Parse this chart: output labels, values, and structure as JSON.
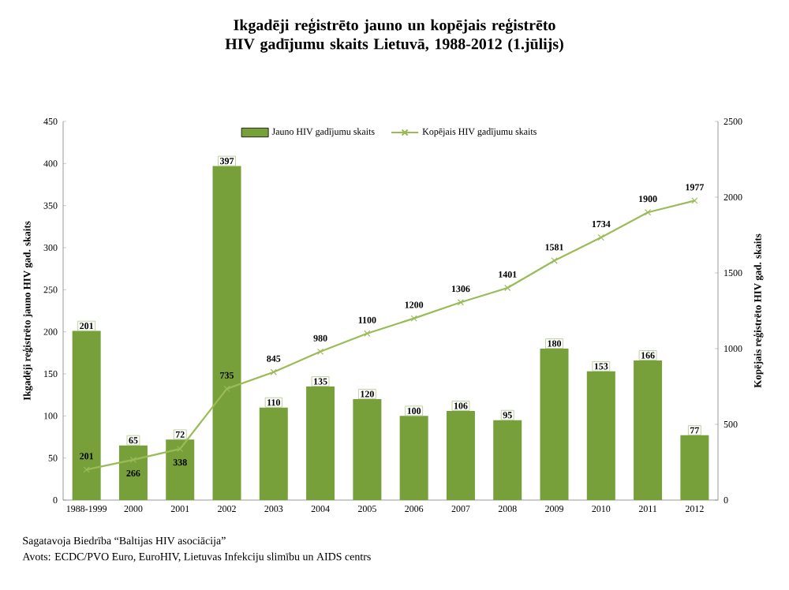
{
  "chart_data": {
    "type": "bar",
    "title": "Ikgadēji reģistrēto jauno un kopējais reģistrēto HIV gadījumu skaits Lietuvā, 1988-2012 (1.jūlijs)",
    "ylabel": "Ikgadēji reģistrēto jauno HIV gad. skaits",
    "y2label": "Kopējais reģistrēto HIV gad. skaits",
    "categories": [
      "1988-1999",
      "2000",
      "2001",
      "2002",
      "2003",
      "2004",
      "2005",
      "2006",
      "2007",
      "2008",
      "2009",
      "2010",
      "2011",
      "2012"
    ],
    "series": [
      {
        "name": "Jauno HIV gadījumu skaits",
        "color": "#77a03a",
        "values": [
          201,
          65,
          72,
          397,
          110,
          135,
          120,
          100,
          106,
          95,
          180,
          153,
          166,
          77
        ]
      },
      {
        "name": "Kopējais HIV gadījumu skaits",
        "type": "line",
        "axis": "y2",
        "color": "#9bbb59",
        "marker": "cross",
        "values": [
          201,
          266,
          338,
          735,
          845,
          980,
          1100,
          1200,
          1306,
          1401,
          1581,
          1734,
          1900,
          1977
        ]
      }
    ],
    "ylim": [
      0,
      450
    ],
    "yticks": [
      0,
      50,
      100,
      150,
      200,
      250,
      300,
      350,
      400,
      450
    ],
    "y2lim": [
      0,
      2500
    ],
    "y2ticks": [
      0,
      500,
      1000,
      1500,
      2000,
      2500
    ],
    "data_labels": true,
    "legend": "top",
    "annotations": [
      "Sagatavoja Biedrība “Baltijas HIV asociācija”",
      "Avots: ECDC/PVO Euro, EuroHIV, Lietuvas Infekciju slimību un AIDS centrs"
    ]
  }
}
